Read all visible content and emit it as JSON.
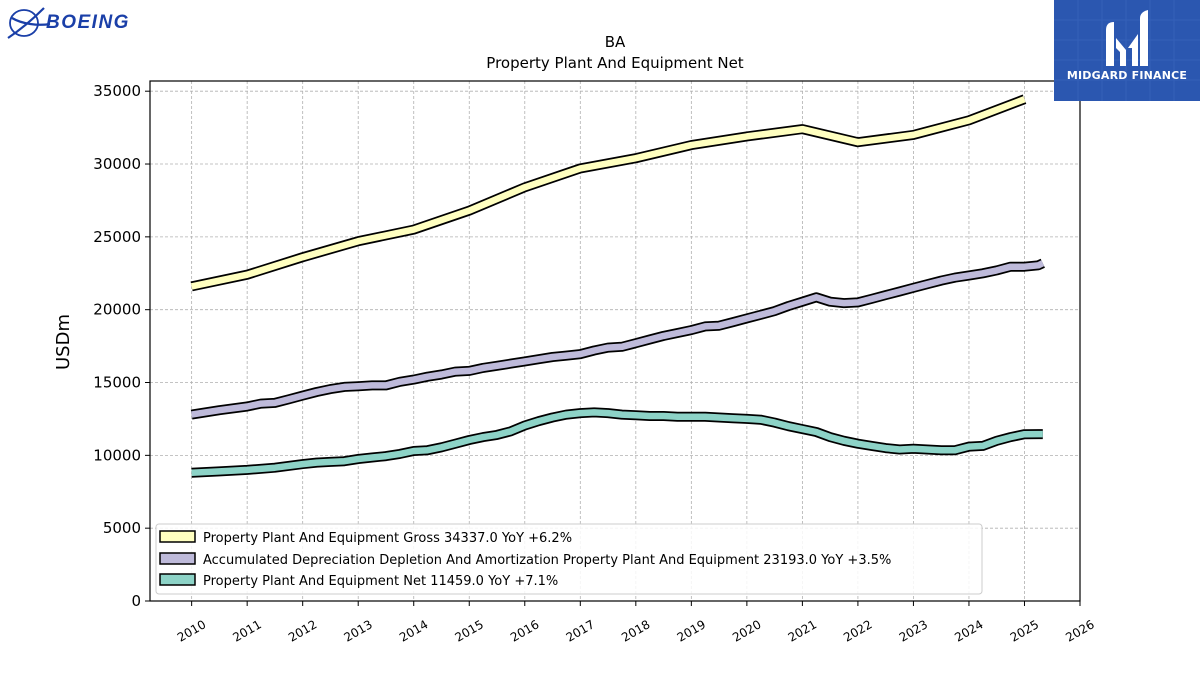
{
  "logos": {
    "left": {
      "text": "BOEING",
      "color": "#1a3fa8",
      "icon": "boeing-globe-icon"
    },
    "right": {
      "text": "MIDGARD FINANCE",
      "background": "#2b57b0",
      "icon": "midgard-m-icon"
    }
  },
  "chart_data": {
    "type": "line",
    "title": "BA",
    "subtitle": "Property Plant And Equipment Net",
    "xlabel": "",
    "ylabel": "USDm",
    "xlim": [
      2009.25,
      2026
    ],
    "ylim": [
      0,
      35700
    ],
    "x_ticks": [
      2010,
      2011,
      2012,
      2013,
      2014,
      2015,
      2016,
      2017,
      2018,
      2019,
      2020,
      2021,
      2022,
      2023,
      2024,
      2025,
      2026
    ],
    "y_ticks": [
      0,
      5000,
      10000,
      15000,
      20000,
      25000,
      30000,
      35000
    ],
    "grid": true,
    "legend_position": "lower-left",
    "series": [
      {
        "name": "Property Plant And Equipment Gross",
        "legend_label": "Property Plant And Equipment Gross  34337.0 YoY +6.2%",
        "color": "#ffffc0",
        "x": [
          2010.0,
          2011.0,
          2012.0,
          2013.0,
          2014.0,
          2015.0,
          2016.0,
          2017.0,
          2018.0,
          2019.0,
          2020.0,
          2021.0,
          2022.0,
          2023.0,
          2024.0,
          2025.0
        ],
        "values": [
          21600,
          22400,
          23600,
          24700,
          25500,
          26800,
          28400,
          29700,
          30400,
          31300,
          31900,
          32400,
          31500,
          32000,
          33000,
          34450
        ]
      },
      {
        "name": "Accumulated Depreciation Depletion And Amortization Property Plant And Equipment",
        "legend_label": "Accumulated Depreciation Depletion And Amortization Property Plant And Equipment  23193.0 YoY +3.5%",
        "color": "#bebada",
        "x": [
          2010.0,
          2010.5,
          2011.0,
          2011.25,
          2011.5,
          2011.75,
          2012.0,
          2012.25,
          2012.5,
          2012.75,
          2013.0,
          2013.25,
          2013.5,
          2013.75,
          2014.0,
          2014.25,
          2014.5,
          2014.75,
          2015.0,
          2015.25,
          2015.5,
          2015.75,
          2016.0,
          2016.25,
          2016.5,
          2016.75,
          2017.0,
          2017.25,
          2017.5,
          2017.75,
          2018.0,
          2018.25,
          2018.5,
          2018.75,
          2019.0,
          2019.25,
          2019.5,
          2019.75,
          2020.0,
          2020.25,
          2020.5,
          2020.75,
          2021.0,
          2021.25,
          2021.5,
          2021.75,
          2022.0,
          2022.25,
          2022.5,
          2022.75,
          2023.0,
          2023.25,
          2023.5,
          2023.75,
          2024.0,
          2024.25,
          2024.5,
          2024.75,
          2025.0,
          2025.25,
          2025.33
        ],
        "values": [
          12800,
          13100,
          13350,
          13550,
          13600,
          13850,
          14100,
          14350,
          14550,
          14700,
          14750,
          14800,
          14800,
          15050,
          15200,
          15400,
          15550,
          15750,
          15800,
          16000,
          16150,
          16300,
          16450,
          16600,
          16750,
          16850,
          16950,
          17200,
          17400,
          17450,
          17700,
          17950,
          18200,
          18400,
          18600,
          18850,
          18900,
          19150,
          19400,
          19650,
          19900,
          20250,
          20550,
          20850,
          20550,
          20450,
          20500,
          20750,
          21000,
          21250,
          21500,
          21750,
          22000,
          22200,
          22350,
          22500,
          22700,
          22950,
          22950,
          23050,
          23193
        ]
      },
      {
        "name": "Property Plant And Equipment Net",
        "legend_label": "Property Plant And Equipment Net  11459.0 YoY +7.1%",
        "color": "#8dd3c7",
        "x": [
          2010.0,
          2010.5,
          2011.0,
          2011.5,
          2012.0,
          2012.25,
          2012.5,
          2012.75,
          2013.0,
          2013.25,
          2013.5,
          2013.75,
          2014.0,
          2014.25,
          2014.5,
          2014.75,
          2015.0,
          2015.25,
          2015.5,
          2015.75,
          2016.0,
          2016.25,
          2016.5,
          2016.75,
          2017.0,
          2017.25,
          2017.5,
          2017.75,
          2018.0,
          2018.25,
          2018.5,
          2018.75,
          2019.0,
          2019.25,
          2019.5,
          2019.75,
          2020.0,
          2020.25,
          2020.5,
          2020.75,
          2021.0,
          2021.25,
          2021.5,
          2021.75,
          2022.0,
          2022.25,
          2022.5,
          2022.75,
          2023.0,
          2023.25,
          2023.5,
          2023.75,
          2024.0,
          2024.25,
          2024.5,
          2024.75,
          2025.0,
          2025.25,
          2025.33
        ],
        "values": [
          8800,
          8900,
          9000,
          9150,
          9400,
          9500,
          9550,
          9600,
          9750,
          9850,
          9950,
          10100,
          10300,
          10350,
          10550,
          10800,
          11050,
          11250,
          11400,
          11650,
          12050,
          12350,
          12600,
          12800,
          12900,
          12950,
          12900,
          12800,
          12750,
          12700,
          12700,
          12650,
          12650,
          12650,
          12600,
          12550,
          12500,
          12450,
          12250,
          12000,
          11800,
          11600,
          11250,
          11000,
          10800,
          10650,
          10500,
          10400,
          10450,
          10400,
          10350,
          10350,
          10600,
          10650,
          11000,
          11250,
          11450,
          11459,
          11459
        ]
      }
    ]
  }
}
